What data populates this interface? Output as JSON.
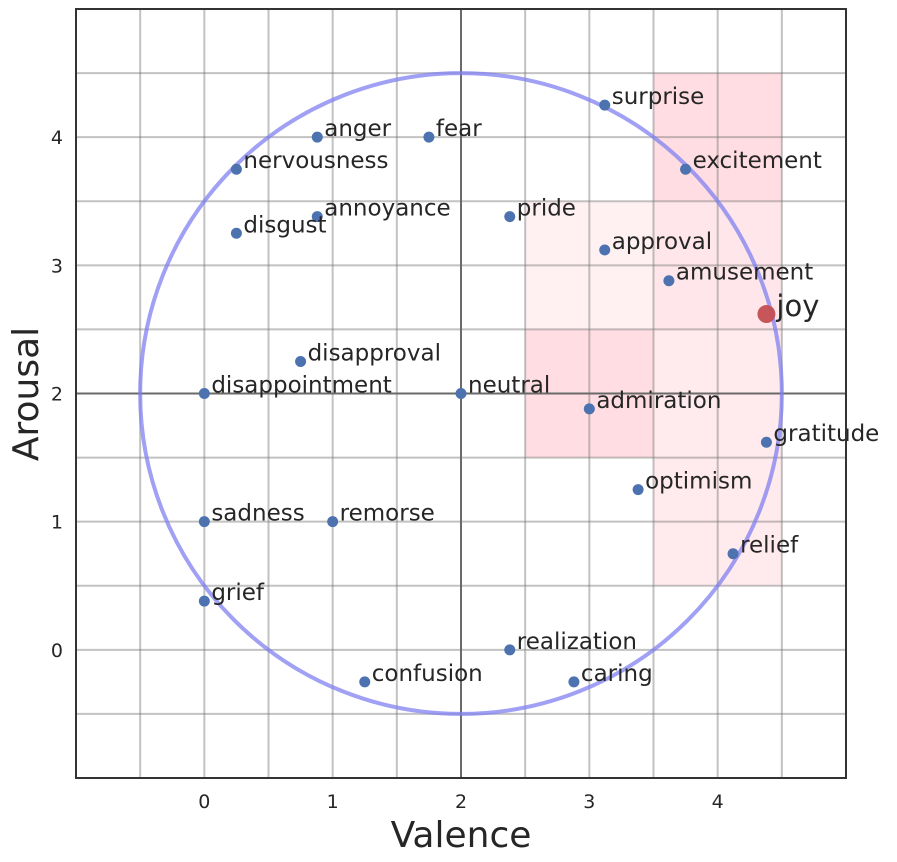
{
  "chart_data": {
    "type": "scatter",
    "title": "",
    "xlabel": "Valence",
    "ylabel": "Arousal",
    "xlim": [
      -1,
      5
    ],
    "ylim": [
      -1,
      5
    ],
    "xticks": [
      0,
      1,
      2,
      3,
      4
    ],
    "yticks": [
      0,
      1,
      2,
      3,
      4
    ],
    "grid": true,
    "grid_minor_step": 0.5,
    "legend": null,
    "reference_lines": {
      "x": 2,
      "y": 2
    },
    "circle": {
      "center": [
        2,
        2
      ],
      "radius": 2.5,
      "color": "#8080f0"
    },
    "highlight_regions": [
      {
        "x": [
          3.5,
          4.5
        ],
        "y": [
          3.5,
          4.5
        ],
        "color": "#ffdde2"
      },
      {
        "x": [
          2.5,
          4.5
        ],
        "y": [
          2.5,
          3.5
        ],
        "color": "#fff0f2"
      },
      {
        "x": [
          3.5,
          4.5
        ],
        "y": [
          2.5,
          3.5
        ],
        "color": "#ffe6ea"
      },
      {
        "x": [
          2.5,
          3.5
        ],
        "y": [
          1.5,
          2.5
        ],
        "color": "#ffdde2"
      },
      {
        "x": [
          3.5,
          4.5
        ],
        "y": [
          0.5,
          2.5
        ],
        "color": "#ffeaed"
      }
    ],
    "point_color": "#4c72b0",
    "highlight_point_color": "#c44e52",
    "points": [
      {
        "label": "surprise",
        "x": 3.12,
        "y": 4.25
      },
      {
        "label": "anger",
        "x": 0.88,
        "y": 4.0
      },
      {
        "label": "fear",
        "x": 1.75,
        "y": 4.0
      },
      {
        "label": "nervousness",
        "x": 0.25,
        "y": 3.75
      },
      {
        "label": "excitement",
        "x": 3.75,
        "y": 3.75
      },
      {
        "label": "annoyance",
        "x": 0.88,
        "y": 3.38
      },
      {
        "label": "pride",
        "x": 2.38,
        "y": 3.38
      },
      {
        "label": "disgust",
        "x": 0.25,
        "y": 3.25
      },
      {
        "label": "approval",
        "x": 3.12,
        "y": 3.12
      },
      {
        "label": "amusement",
        "x": 3.62,
        "y": 2.88
      },
      {
        "label": "joy",
        "x": 4.38,
        "y": 2.62,
        "highlight": true
      },
      {
        "label": "disapproval",
        "x": 0.75,
        "y": 2.25
      },
      {
        "label": "disappointment",
        "x": 0.0,
        "y": 2.0
      },
      {
        "label": "neutral",
        "x": 2.0,
        "y": 2.0
      },
      {
        "label": "admiration",
        "x": 3.0,
        "y": 1.88
      },
      {
        "label": "gratitude",
        "x": 4.38,
        "y": 1.62
      },
      {
        "label": "optimism",
        "x": 3.38,
        "y": 1.25
      },
      {
        "label": "sadness",
        "x": 0.0,
        "y": 1.0
      },
      {
        "label": "remorse",
        "x": 1.0,
        "y": 1.0
      },
      {
        "label": "relief",
        "x": 4.12,
        "y": 0.75
      },
      {
        "label": "grief",
        "x": 0.0,
        "y": 0.38
      },
      {
        "label": "realization",
        "x": 2.38,
        "y": 0.0
      },
      {
        "label": "confusion",
        "x": 1.25,
        "y": -0.25
      },
      {
        "label": "caring",
        "x": 2.88,
        "y": -0.25
      }
    ]
  }
}
